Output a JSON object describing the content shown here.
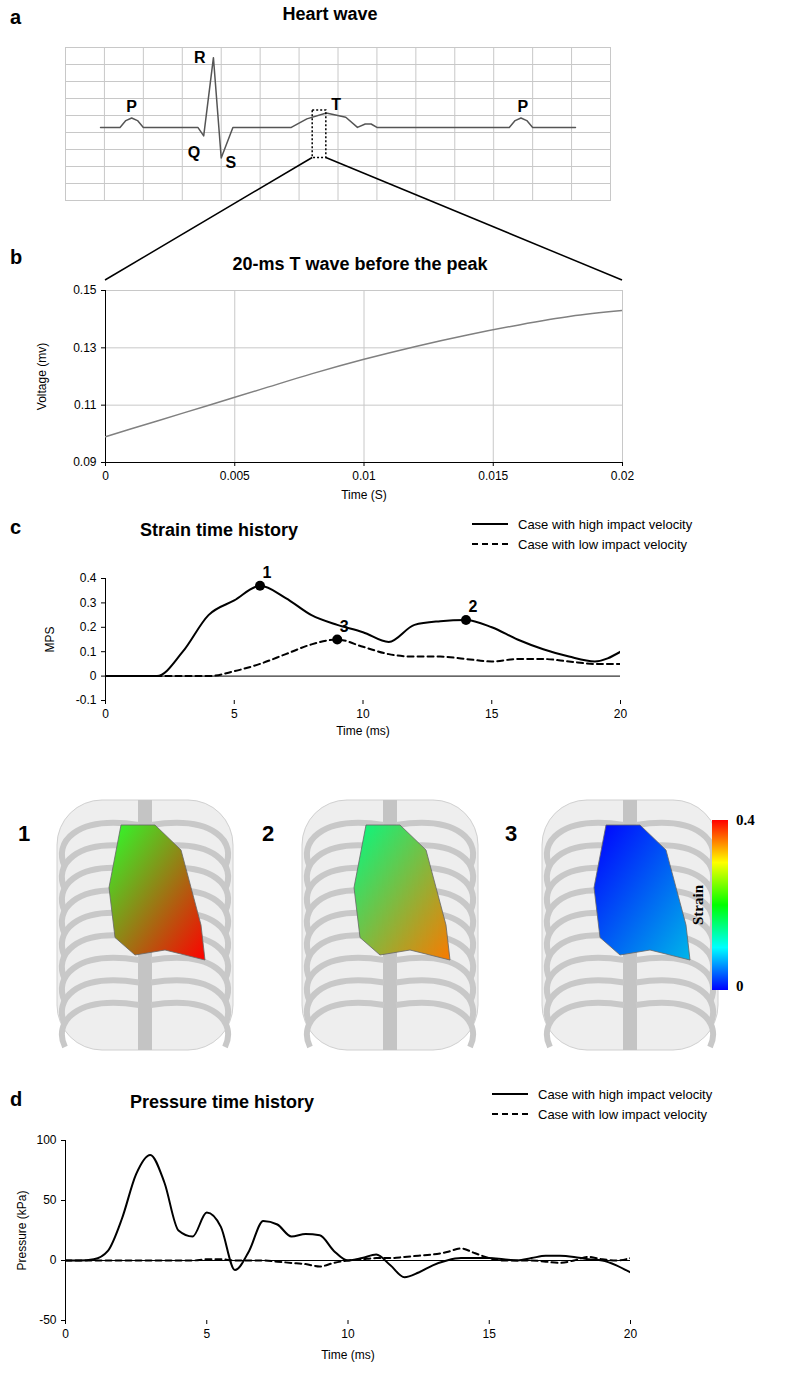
{
  "chart_data": [
    {
      "panel": "a",
      "type": "line",
      "title": "Heart wave",
      "x": [
        0.9,
        1.4,
        1.55,
        1.7,
        1.85,
        2.0,
        3.4,
        3.55,
        3.8,
        4.0,
        4.3,
        5.8,
        6.2,
        6.7,
        7.2,
        7.5,
        7.7,
        7.85,
        8.0,
        11.4,
        11.55,
        11.7,
        11.85,
        12.0,
        13.1
      ],
      "values": [
        4.3,
        4.3,
        4.7,
        4.85,
        4.7,
        4.3,
        4.3,
        3.8,
        8.4,
        2.5,
        4.3,
        4.3,
        4.8,
        5.15,
        4.9,
        4.3,
        4.5,
        4.5,
        4.3,
        4.3,
        4.7,
        4.85,
        4.7,
        4.3,
        4.3
      ],
      "color": "#555555",
      "xlim": [
        0,
        14
      ],
      "ylim": [
        0,
        9
      ],
      "xticks": [
        0,
        1,
        2,
        3,
        4,
        5,
        6,
        7,
        8,
        9,
        10,
        11,
        12,
        13,
        14
      ],
      "yticks": [
        0,
        1,
        2,
        3,
        4,
        5,
        6,
        7,
        8,
        9
      ],
      "grid": true,
      "tick_labels": false,
      "annotations": [
        {
          "text": "P",
          "x": 1.7,
          "y": 5.5
        },
        {
          "text": "R",
          "x": 3.45,
          "y": 8.4
        },
        {
          "text": "Q",
          "x": 3.3,
          "y": 2.8
        },
        {
          "text": "S",
          "x": 4.25,
          "y": 2.2
        },
        {
          "text": "T",
          "x": 6.95,
          "y": 5.6
        },
        {
          "text": "P",
          "x": 11.75,
          "y": 5.5
        }
      ],
      "highlight_box": {
        "x": [
          6.35,
          6.7
        ],
        "y": [
          2.5,
          5.3
        ]
      }
    },
    {
      "panel": "b",
      "type": "line",
      "title": "20-ms T wave before the peak",
      "x_label": "Time (S)",
      "y_label": "Voltage (mv)",
      "x": [
        0,
        0.002,
        0.004,
        0.006,
        0.008,
        0.01,
        0.012,
        0.014,
        0.016,
        0.018,
        0.02
      ],
      "values": [
        0.099,
        0.1045,
        0.11,
        0.1155,
        0.121,
        0.126,
        0.1305,
        0.1345,
        0.138,
        0.141,
        0.143
      ],
      "color": "#808080",
      "xlim": [
        0,
        0.02
      ],
      "ylim": [
        0.09,
        0.15
      ],
      "xticks": [
        0,
        0.005,
        0.01,
        0.015,
        0.02
      ],
      "yticks": [
        0.09,
        0.11,
        0.13,
        0.15
      ],
      "grid": true
    },
    {
      "panel": "c",
      "type": "line",
      "title": "Strain time history",
      "x_label": "Time (ms)",
      "y_label": "MPS",
      "x": [
        0,
        1,
        2,
        3,
        4,
        5,
        6,
        7,
        8,
        9,
        10,
        11,
        12,
        13,
        14,
        15,
        16,
        17,
        18,
        19,
        20
      ],
      "series": [
        {
          "name": "Case with high impact velocity",
          "color": "#000000",
          "line_style": "solid",
          "values": [
            0,
            0,
            0,
            0.1,
            0.25,
            0.31,
            0.37,
            0.32,
            0.25,
            0.21,
            0.18,
            0.14,
            0.21,
            0.225,
            0.23,
            0.2,
            0.15,
            0.11,
            0.08,
            0.06,
            0.1
          ]
        },
        {
          "name": "Case with low impact velocity",
          "color": "#000000",
          "line_style": "dashed",
          "values": [
            0,
            0,
            0,
            0,
            0,
            0.02,
            0.05,
            0.09,
            0.13,
            0.15,
            0.12,
            0.09,
            0.08,
            0.08,
            0.07,
            0.06,
            0.07,
            0.07,
            0.06,
            0.05,
            0.05
          ]
        }
      ],
      "points": [
        {
          "label": "1",
          "x": 6,
          "y": 0.37
        },
        {
          "label": "2",
          "x": 14,
          "y": 0.23
        },
        {
          "label": "3",
          "x": 9,
          "y": 0.15
        }
      ],
      "xlim": [
        0,
        20
      ],
      "ylim": [
        -0.1,
        0.4
      ],
      "xticks": [
        0,
        5,
        10,
        15,
        20
      ],
      "yticks": [
        -0.1,
        0,
        0.1,
        0.2,
        0.3,
        0.4
      ],
      "grid": false,
      "legend": "top-right"
    },
    {
      "type": "image",
      "images": [
        {
          "label": "1",
          "strain_range": [
            0.2,
            0.4
          ]
        },
        {
          "label": "2",
          "strain_range": [
            0.15,
            0.35
          ]
        },
        {
          "label": "3",
          "strain_range": [
            0.0,
            0.08
          ]
        }
      ],
      "colorbar": {
        "title": "Strain",
        "range": [
          0,
          0.4
        ],
        "ticks": [
          0,
          0.4
        ],
        "colors": [
          "#0000ff",
          "#00ffff",
          "#00ff00",
          "#ffff00",
          "#ff0000"
        ]
      }
    },
    {
      "panel": "d",
      "type": "line",
      "title": "Pressure time history",
      "x_label": "Time (ms)",
      "y_label": "Pressure (kPa)",
      "x": [
        0,
        0.5,
        1,
        1.5,
        2,
        2.5,
        3,
        3.5,
        4,
        4.5,
        5,
        5.5,
        6,
        6.5,
        7,
        7.5,
        8,
        8.5,
        9,
        9.5,
        10,
        10.5,
        11,
        11.5,
        12,
        12.5,
        13,
        13.5,
        14,
        14.5,
        15,
        15.5,
        16,
        16.5,
        17,
        17.5,
        18,
        18.5,
        19,
        19.5,
        20
      ],
      "series": [
        {
          "name": "Case with high impact velocity",
          "color": "#000000",
          "line_style": "solid",
          "values": [
            0,
            0,
            1,
            8,
            35,
            72,
            88,
            65,
            25,
            20,
            40,
            28,
            -8,
            8,
            33,
            30,
            20,
            22,
            21,
            8,
            0,
            2,
            5,
            -4,
            -14,
            -10,
            -4,
            0,
            2,
            2,
            2,
            1,
            0,
            2,
            4,
            4,
            3,
            1,
            0,
            -4,
            -10
          ]
        },
        {
          "name": "Case with low impact velocity",
          "color": "#000000",
          "line_style": "dashed",
          "values": [
            0,
            0,
            0,
            0,
            0,
            0,
            0,
            0,
            0,
            0,
            1,
            1,
            0,
            0,
            0,
            -1,
            -2,
            -3,
            -5,
            -2,
            0,
            1,
            2,
            2,
            3,
            4,
            5,
            7,
            10,
            6,
            2,
            0,
            0,
            0,
            -1,
            -2,
            0,
            3,
            1,
            0,
            2
          ]
        }
      ],
      "xlim": [
        0,
        20
      ],
      "ylim": [
        -50,
        100
      ],
      "xticks": [
        0,
        5,
        10,
        15,
        20
      ],
      "yticks": [
        -50,
        0,
        50,
        100
      ],
      "grid": false,
      "legend": "top-right"
    }
  ]
}
